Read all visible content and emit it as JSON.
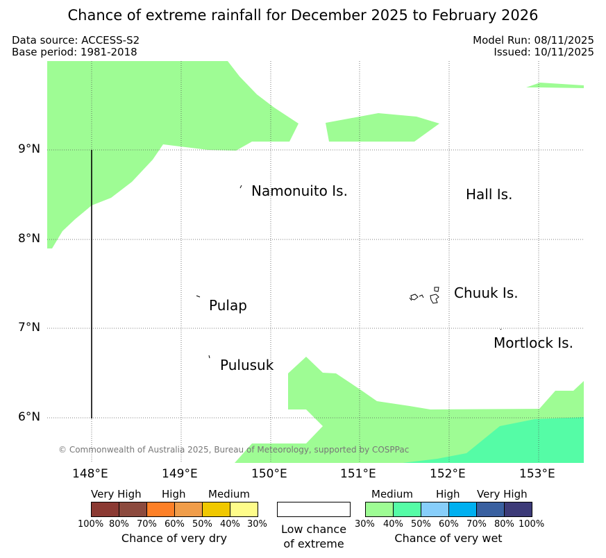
{
  "title": "Chance of extreme rainfall for December 2025 to February 2026",
  "meta": {
    "data_source": "Data source: ACCESS-S2",
    "base_period": "Base period: 1981-2018",
    "model_run": "Model Run: 08/11/2025",
    "issued": "Issued: 10/11/2025"
  },
  "map": {
    "lat_labels": [
      "9°N",
      "8°N",
      "7°N",
      "6°N"
    ],
    "lon_labels": [
      "148°E",
      "149°E",
      "150°E",
      "151°E",
      "152°E",
      "153°E"
    ],
    "places": [
      "Namonuito Is.",
      "Hall Is.",
      "Pulap",
      "Chuuk Is.",
      "Mortlock Is.",
      "Pulusuk"
    ],
    "copyright": "© Commonwealth of Australia 2025, Bureau of Meteorology, supported by COSPPac",
    "colors": {
      "wet_30_40": "#9efc94",
      "wet_40_50": "#55fca6",
      "background": "#ffffff"
    }
  },
  "legend": {
    "dry": {
      "headers": [
        "Very High",
        "High",
        "Medium"
      ],
      "ticks": [
        "100%",
        "80%",
        "70%",
        "60%",
        "50%",
        "40%",
        "30%"
      ],
      "colors": [
        "#8b3a33",
        "#8c4a3e",
        "#fd8027",
        "#f09d4a",
        "#f0c800",
        "#fefc8a"
      ],
      "caption": "Chance of very dry"
    },
    "neutral": {
      "line1": "Low chance",
      "line2": "of extreme",
      "color": "#ffffff"
    },
    "wet": {
      "headers": [
        "Medium",
        "High",
        "Very High"
      ],
      "ticks": [
        "30%",
        "40%",
        "50%",
        "60%",
        "70%",
        "80%",
        "100%"
      ],
      "colors": [
        "#9efc94",
        "#55fca6",
        "#87cefa",
        "#00b0f0",
        "#3960a0",
        "#3c3a78"
      ],
      "caption": "Chance of very wet"
    }
  }
}
